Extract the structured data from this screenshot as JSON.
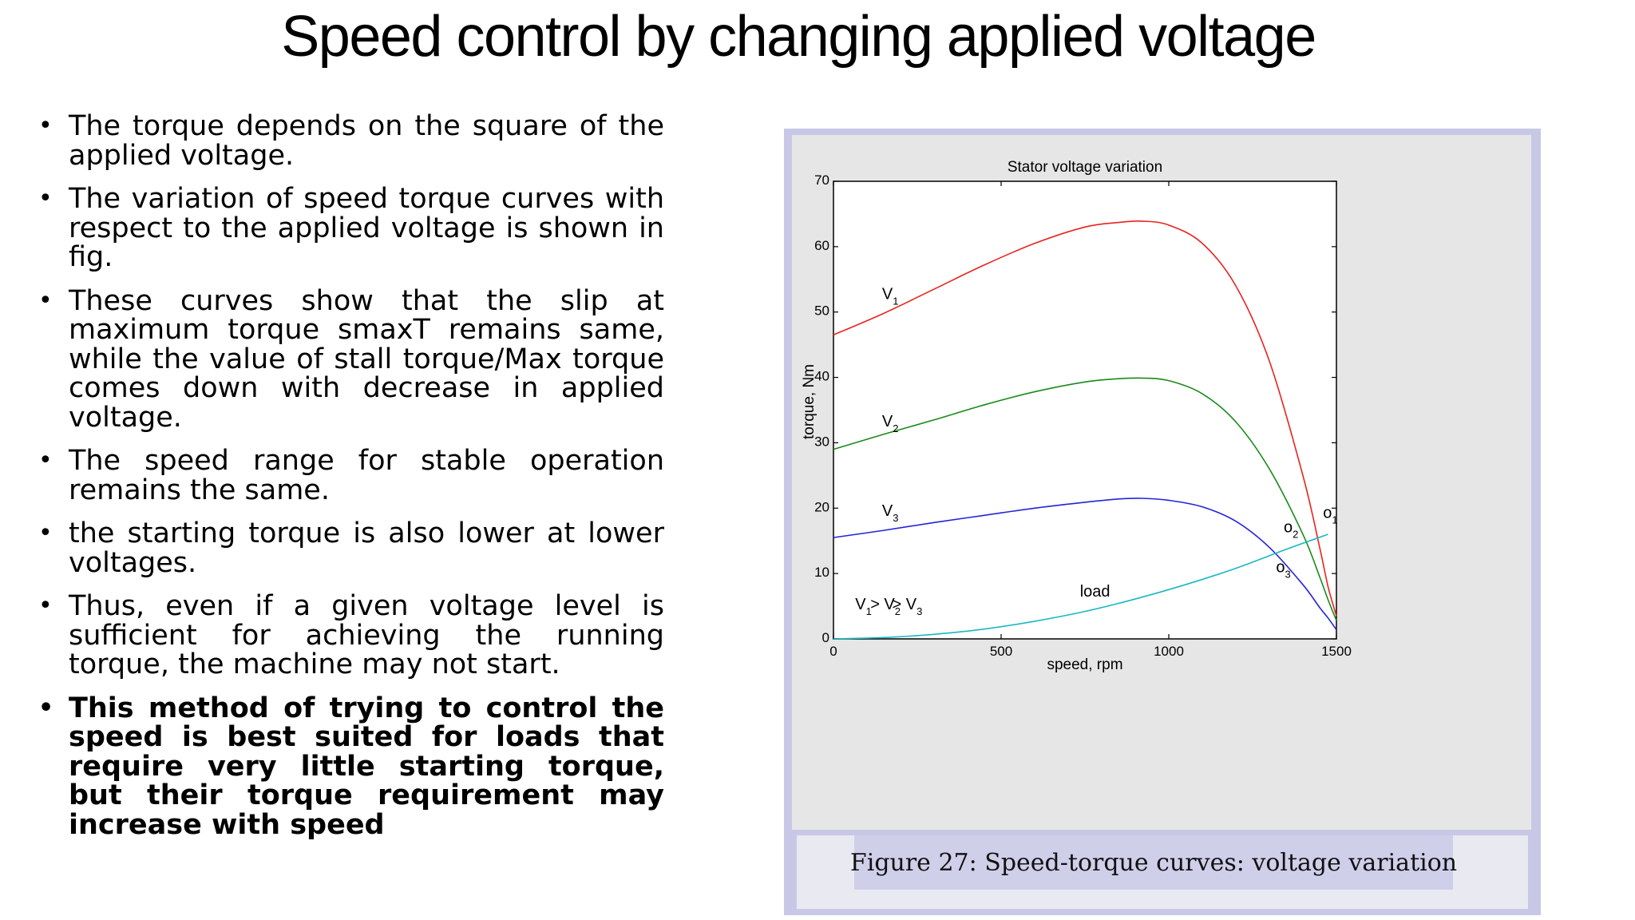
{
  "slide": {
    "title": "Speed control by changing applied voltage",
    "bullets": [
      {
        "text": "The torque depends on the square of the applied voltage.",
        "bold": false
      },
      {
        "text": "The variation of speed torque curves with respect to the applied voltage is shown in fig.",
        "bold": false
      },
      {
        "text": "These curves show that the slip at maximum torque smaxT remains same, while the value of stall torque/Max torque comes down with decrease in applied voltage.",
        "bold": false
      },
      {
        "text": "The speed range for stable operation remains the same.",
        "bold": false
      },
      {
        "text": "the starting torque is also lower at lower voltages.",
        "bold": false
      },
      {
        "text": "Thus, even if a given voltage level is sufficient for achieving the running torque, the machine may not start.",
        "bold": false
      },
      {
        "text": "This method of trying to control the speed is best suited for loads that require very little starting torque, but their torque requirement may increase with speed",
        "bold": true
      }
    ],
    "caption": "Figure 27: Speed-torque curves: voltage variation"
  },
  "chart_data": {
    "type": "line",
    "title": "Stator voltage variation",
    "xlabel": "speed, rpm",
    "ylabel": "torque, Nm",
    "xlim": [
      0,
      1500
    ],
    "ylim": [
      0,
      70
    ],
    "xticks": [
      0,
      500,
      1000,
      1500
    ],
    "yticks": [
      0,
      10,
      20,
      30,
      40,
      50,
      60,
      70
    ],
    "grid": false,
    "series": [
      {
        "name": "V1",
        "color": "#e8231f",
        "x": [
          0,
          150,
          300,
          450,
          600,
          750,
          850,
          920,
          1000,
          1100,
          1200,
          1300,
          1400,
          1450,
          1475,
          1500
        ],
        "y": [
          46.5,
          49.8,
          53.5,
          57.2,
          60.5,
          63,
          63.7,
          63.9,
          63.3,
          60.5,
          54,
          42.5,
          25,
          14,
          8,
          3.5
        ]
      },
      {
        "name": "V2",
        "color": "#1a8a1a",
        "x": [
          0,
          150,
          300,
          450,
          600,
          750,
          850,
          920,
          1000,
          1100,
          1200,
          1300,
          1400,
          1450,
          1475,
          1500
        ],
        "y": [
          29,
          31.3,
          33.5,
          35.8,
          37.8,
          39.3,
          39.8,
          39.9,
          39.5,
          37.5,
          33.2,
          26,
          16,
          9.5,
          6,
          2.8
        ]
      },
      {
        "name": "V3",
        "color": "#2424d8",
        "x": [
          0,
          150,
          300,
          450,
          600,
          750,
          850,
          920,
          1000,
          1100,
          1200,
          1300,
          1400,
          1450,
          1475,
          1500
        ],
        "y": [
          15.5,
          16.6,
          17.8,
          18.9,
          20,
          20.9,
          21.4,
          21.5,
          21.2,
          20.2,
          18,
          14,
          8.3,
          4.8,
          3.2,
          1.4
        ]
      },
      {
        "name": "load",
        "color": "#19b8c2",
        "x": [
          0,
          150,
          300,
          450,
          600,
          750,
          900,
          1050,
          1200,
          1350,
          1475
        ],
        "y": [
          0,
          0.2,
          0.7,
          1.5,
          2.7,
          4.2,
          6.1,
          8.3,
          10.8,
          13.7,
          16
        ]
      }
    ],
    "annotations": [
      {
        "text": "V",
        "sub": "1",
        "x": 145,
        "y": 52
      },
      {
        "text": "V",
        "sub": "2",
        "x": 145,
        "y": 32.5
      },
      {
        "text": "V",
        "sub": "3",
        "x": 145,
        "y": 18.8
      },
      {
        "text": "load",
        "x": 735,
        "y": 6.5
      },
      {
        "text": "o",
        "sub": "1",
        "x": 1460,
        "y": 18.5
      },
      {
        "text": "o",
        "sub": "2",
        "x": 1343,
        "y": 16.3
      },
      {
        "text": "o",
        "sub": "3",
        "x": 1320,
        "y": 10.2
      },
      {
        "text": "V",
        "sub": "1",
        "x": 65,
        "y": 4.5,
        "group": "ineq"
      },
      {
        "text": "> V",
        "sub": "2",
        "x": 110,
        "y": 4.5,
        "group": "ineq"
      },
      {
        "text": "> V",
        "sub": "3",
        "x": 175,
        "y": 4.5,
        "group": "ineq"
      }
    ]
  }
}
